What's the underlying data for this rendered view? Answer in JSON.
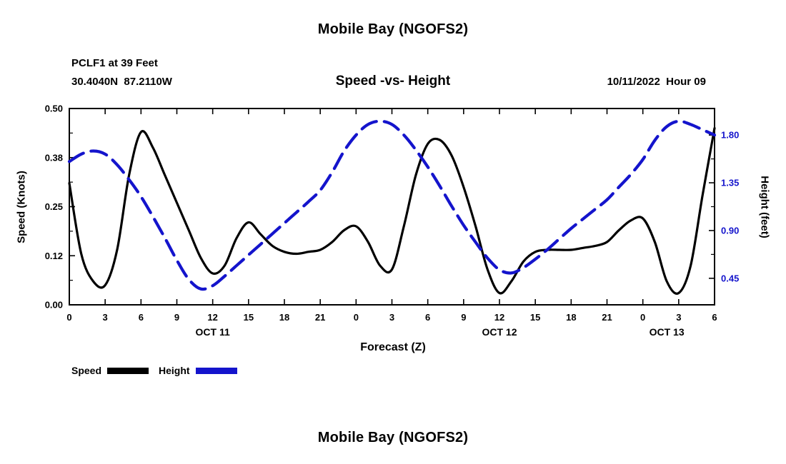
{
  "page": {
    "title_top": "Mobile Bay (NGOFS2)",
    "title_bottom": "Mobile Bay (NGOFS2)",
    "station_id_line": "PCLF1 at 39 Feet",
    "station_coords_line": "30.4040N  87.2110W",
    "subtitle": "Speed -vs- Height",
    "datetime_label": "10/11/2022  Hour 09",
    "xaxis_title": "Forecast (Z)",
    "yaxis_title_left": "Speed (Knots)",
    "yaxis_title_right": "Height (feet)"
  },
  "legend": {
    "speed_label": "Speed",
    "height_label": "Height"
  },
  "colors": {
    "speed": "#000000",
    "height": "#1414cc",
    "frame": "#000000"
  },
  "chart_data": {
    "type": "line",
    "title": "Speed -vs- Height",
    "xlabel": "Forecast (Z)",
    "ylabel_left": "Speed (Knots)",
    "ylabel_right": "Height (feet)",
    "x_unit": "hours from 2022-10-11 00Z",
    "x_range": [
      0,
      54
    ],
    "x_major_ticks": [
      0,
      3,
      6,
      9,
      12,
      15,
      18,
      21,
      24,
      27,
      30,
      33,
      36,
      39,
      42,
      45,
      48,
      51,
      54
    ],
    "x_tick_labels": [
      "0",
      "3",
      "6",
      "9",
      "12",
      "15",
      "18",
      "21",
      "0",
      "3",
      "6",
      "9",
      "12",
      "15",
      "18",
      "21",
      "0",
      "3",
      "6"
    ],
    "day_labels": [
      {
        "label": "OCT 11",
        "hour": 12
      },
      {
        "label": "OCT 12",
        "hour": 36
      },
      {
        "label": "OCT 13",
        "hour": 50
      }
    ],
    "left_axis": {
      "range": [
        0,
        0.5
      ],
      "ticks": [
        0,
        0.125,
        0.25,
        0.375,
        0.5
      ],
      "tick_labels": [
        "0.00",
        "0.12",
        "0.25",
        "0.38",
        "0.50"
      ],
      "minor_ticks": [
        0.0625,
        0.1875,
        0.3125,
        0.4375
      ]
    },
    "right_axis": {
      "range": [
        0.2,
        2.05
      ],
      "ticks": [
        0.45,
        0.9,
        1.35,
        1.8
      ],
      "tick_labels": [
        "0.45",
        "0.90",
        "1.35",
        "1.80"
      ],
      "minor_ticks": [
        0.675,
        1.125,
        1.575
      ]
    },
    "grid": false,
    "legend_position": "bottom-left",
    "series": [
      {
        "name": "Speed",
        "axis": "left",
        "style": "solid",
        "color_key": "speed",
        "x_start": 0,
        "x_step": 1,
        "values": [
          0.31,
          0.13,
          0.06,
          0.05,
          0.14,
          0.33,
          0.44,
          0.4,
          0.33,
          0.26,
          0.19,
          0.12,
          0.08,
          0.1,
          0.17,
          0.21,
          0.18,
          0.15,
          0.135,
          0.13,
          0.135,
          0.14,
          0.16,
          0.19,
          0.2,
          0.16,
          0.1,
          0.09,
          0.2,
          0.33,
          0.41,
          0.42,
          0.38,
          0.3,
          0.2,
          0.09,
          0.03,
          0.06,
          0.11,
          0.135,
          0.14,
          0.14,
          0.14,
          0.145,
          0.15,
          0.16,
          0.19,
          0.215,
          0.22,
          0.16,
          0.06,
          0.03,
          0.1,
          0.28,
          0.45
        ]
      },
      {
        "name": "Height",
        "axis": "right",
        "style": "dashed",
        "color_key": "height",
        "x_start": 0,
        "x_step": 1,
        "values": [
          1.55,
          1.62,
          1.65,
          1.62,
          1.52,
          1.38,
          1.22,
          1.03,
          0.83,
          0.62,
          0.44,
          0.35,
          0.38,
          0.47,
          0.57,
          0.67,
          0.77,
          0.87,
          0.97,
          1.07,
          1.17,
          1.28,
          1.45,
          1.65,
          1.8,
          1.9,
          1.93,
          1.9,
          1.8,
          1.66,
          1.5,
          1.32,
          1.13,
          0.95,
          0.79,
          0.64,
          0.53,
          0.5,
          0.55,
          0.63,
          0.72,
          0.82,
          0.92,
          1.01,
          1.1,
          1.19,
          1.31,
          1.43,
          1.57,
          1.75,
          1.88,
          1.93,
          1.9,
          1.85,
          1.8
        ]
      }
    ]
  }
}
